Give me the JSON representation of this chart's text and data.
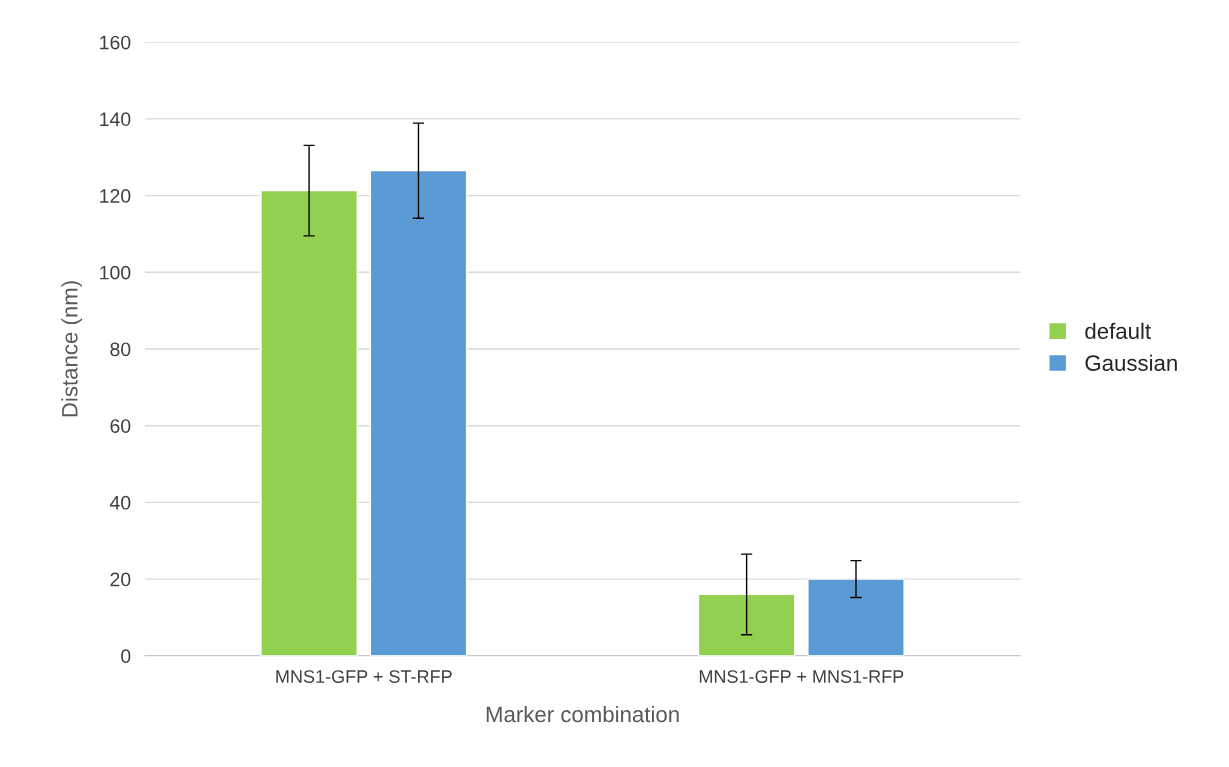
{
  "chart_data": {
    "type": "bar",
    "xlabel": "Marker combination",
    "ylabel": "Distance (nm)",
    "categories": [
      "MNS1-GFP + ST-RFP",
      "MNS1-GFP + MNS1-RFP"
    ],
    "series": [
      {
        "name": "default",
        "color": "#92d050",
        "values": [
          121.3,
          16
        ],
        "errors": [
          11.8,
          10.5
        ]
      },
      {
        "name": "Gaussian",
        "color": "#5b9bd5",
        "values": [
          126.5,
          20
        ],
        "errors": [
          12.4,
          4.8
        ]
      }
    ],
    "ylim": [
      0,
      160
    ],
    "yticks": [
      0,
      20,
      40,
      60,
      80,
      100,
      120,
      140,
      160
    ],
    "grid": "y",
    "legend": "right"
  }
}
